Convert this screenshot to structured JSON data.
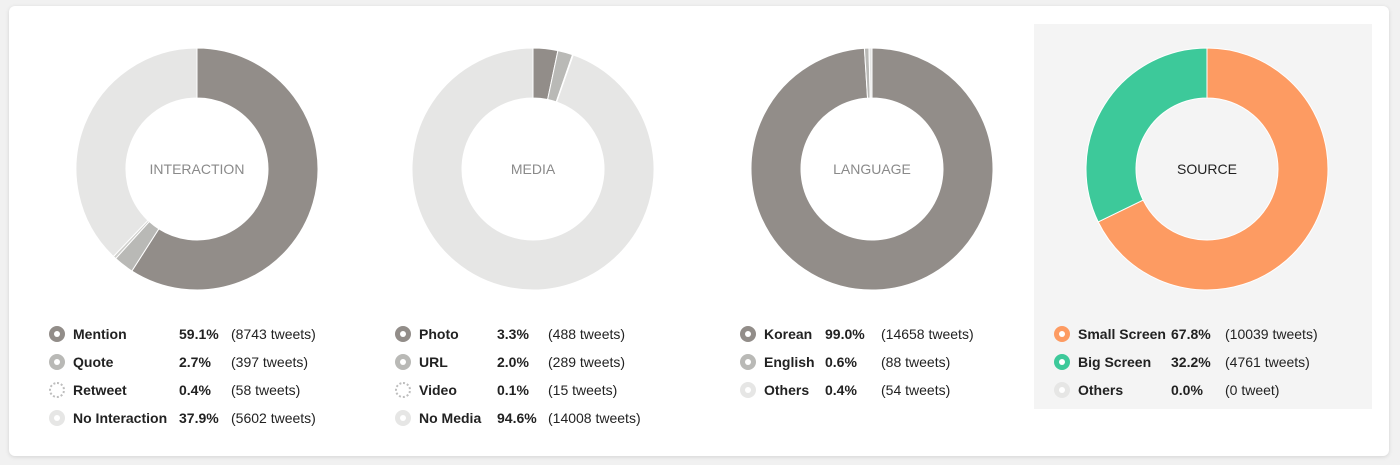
{
  "colors": {
    "dark": "#928d89",
    "mid": "#b9b9b6",
    "light": "#cfcfcc",
    "pale": "#e6e6e5",
    "orange": "#fd9b62",
    "green": "#3dc99a",
    "label_gray": "#8a8a8a",
    "label_dark": "#222222"
  },
  "chart_data": [
    {
      "type": "pie",
      "center_label": "INTERACTION",
      "slices": [
        {
          "label": "Mention",
          "percent": 59.1,
          "percent_text": "59.1%",
          "count_text": "(8743 tweets)",
          "color": "#928d89"
        },
        {
          "label": "Quote",
          "percent": 2.7,
          "percent_text": "2.7%",
          "count_text": "(397 tweets)",
          "color": "#b9b9b6"
        },
        {
          "label": "Retweet",
          "percent": 0.4,
          "percent_text": "0.4%",
          "count_text": "(58 tweets)",
          "color": "#cfcfcc",
          "dotted": true
        },
        {
          "label": "No Interaction",
          "percent": 37.9,
          "percent_text": "37.9%",
          "count_text": "(5602 tweets)",
          "color": "#e6e6e5"
        }
      ]
    },
    {
      "type": "pie",
      "center_label": "MEDIA",
      "slices": [
        {
          "label": "Photo",
          "percent": 3.3,
          "percent_text": "3.3%",
          "count_text": "(488 tweets)",
          "color": "#928d89"
        },
        {
          "label": "URL",
          "percent": 2.0,
          "percent_text": "2.0%",
          "count_text": "(289 tweets)",
          "color": "#b9b9b6"
        },
        {
          "label": "Video",
          "percent": 0.1,
          "percent_text": "0.1%",
          "count_text": "(15 tweets)",
          "color": "#cfcfcc",
          "dotted": true
        },
        {
          "label": "No Media",
          "percent": 94.6,
          "percent_text": "94.6%",
          "count_text": "(14008 tweets)",
          "color": "#e6e6e5"
        }
      ]
    },
    {
      "type": "pie",
      "center_label": "LANGUAGE",
      "slices": [
        {
          "label": "Korean",
          "percent": 99.0,
          "percent_text": "99.0%",
          "count_text": "(14658 tweets)",
          "color": "#928d89"
        },
        {
          "label": "English",
          "percent": 0.6,
          "percent_text": "0.6%",
          "count_text": "(88 tweets)",
          "color": "#b9b9b6"
        },
        {
          "label": "Others",
          "percent": 0.4,
          "percent_text": "0.4%",
          "count_text": "(54 tweets)",
          "color": "#e6e6e5"
        }
      ]
    },
    {
      "type": "pie",
      "center_label": "SOURCE",
      "selected": true,
      "slices": [
        {
          "label": "Small Screen",
          "percent": 67.8,
          "percent_text": "67.8%",
          "count_text": "(10039 tweets)",
          "color": "#fd9b62"
        },
        {
          "label": "Big Screen",
          "percent": 32.2,
          "percent_text": "32.2%",
          "count_text": "(4761 tweets)",
          "color": "#3dc99a"
        },
        {
          "label": "Others",
          "percent": 0.0,
          "percent_text": "0.0%",
          "count_text": "(0 tweet)",
          "color": "#e6e6e5"
        }
      ]
    }
  ]
}
